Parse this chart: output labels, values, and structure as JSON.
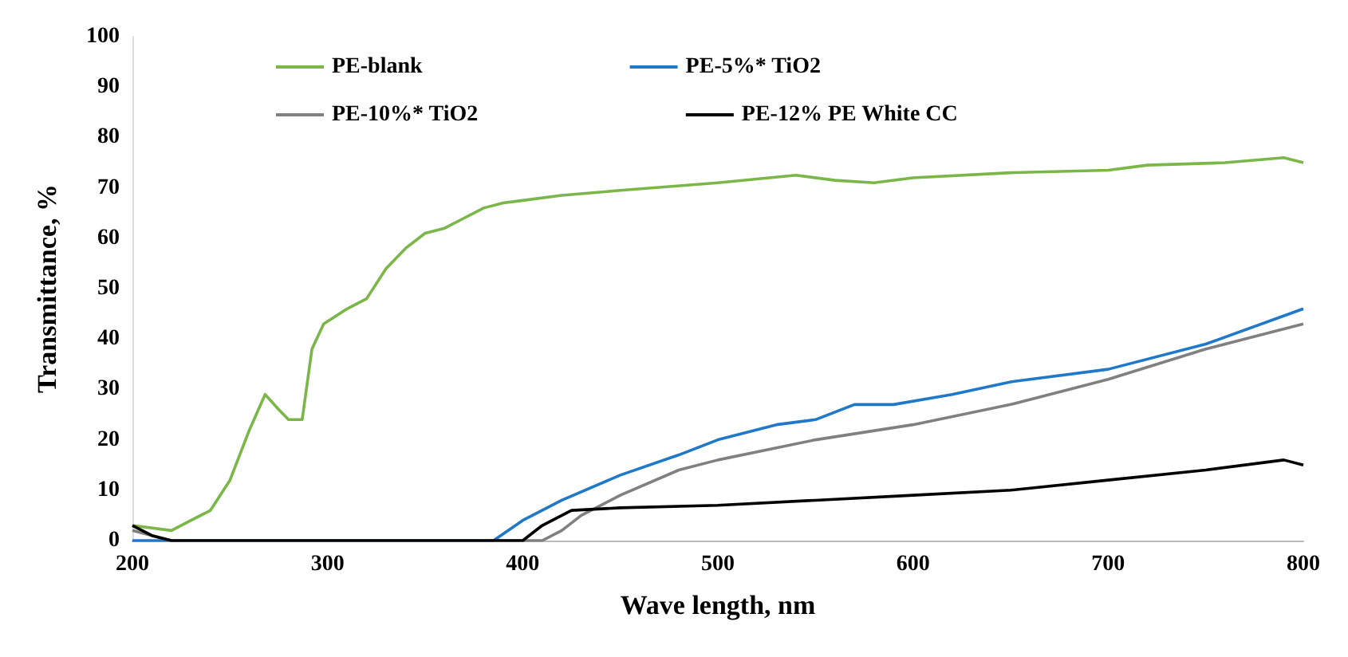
{
  "chart_data": {
    "type": "line",
    "xlabel": "Wave length, nm",
    "ylabel": "Transmittance, %",
    "xlim": [
      200,
      800
    ],
    "xticks": [
      200,
      300,
      400,
      500,
      600,
      700,
      800
    ],
    "ylim": [
      0,
      100
    ],
    "yticks": [
      0,
      10,
      20,
      30,
      40,
      50,
      60,
      70,
      80,
      90,
      100
    ],
    "grid": false,
    "legend": "top",
    "marker": "none",
    "line_style": "solid",
    "series": [
      {
        "name": "PE-blank",
        "color": "#7ab648",
        "x": [
          200,
          220,
          230,
          240,
          250,
          260,
          268,
          275,
          280,
          287,
          292,
          298,
          310,
          320,
          330,
          340,
          350,
          360,
          370,
          380,
          390,
          400,
          420,
          450,
          500,
          540,
          560,
          580,
          600,
          650,
          700,
          720,
          760,
          790,
          800
        ],
        "values": [
          3,
          2,
          4,
          6,
          12,
          22,
          29,
          26,
          24,
          24,
          38,
          43,
          46,
          48,
          54,
          58,
          61,
          62,
          64,
          66,
          67,
          67.5,
          68.5,
          69.5,
          71,
          72.5,
          71.5,
          71,
          72,
          73,
          73.5,
          74.5,
          75,
          76,
          75
        ]
      },
      {
        "name": "PE-5%* TiO2",
        "color": "#1f78c8",
        "x": [
          200,
          300,
          385,
          400,
          420,
          450,
          480,
          500,
          530,
          550,
          570,
          590,
          620,
          650,
          700,
          750,
          800
        ],
        "values": [
          0,
          0,
          0,
          4,
          8,
          13,
          17,
          20,
          23,
          24,
          27,
          27,
          29,
          31.5,
          34,
          39,
          46
        ]
      },
      {
        "name": "PE-10%* TiO2",
        "color": "#808080",
        "x": [
          200,
          210,
          220,
          300,
          410,
          420,
          430,
          450,
          480,
          500,
          550,
          600,
          650,
          700,
          750,
          800
        ],
        "values": [
          2,
          1,
          0,
          0,
          0,
          2,
          5,
          9,
          14,
          16,
          20,
          23,
          27,
          32,
          38,
          43
        ]
      },
      {
        "name": "PE-12% PE White CC",
        "color": "#000000",
        "x": [
          200,
          210,
          220,
          300,
          400,
          410,
          425,
          450,
          500,
          550,
          600,
          650,
          700,
          750,
          790,
          800
        ],
        "values": [
          3,
          1,
          0,
          0,
          0,
          3,
          6,
          6.5,
          7,
          8,
          9,
          10,
          12,
          14,
          16,
          15
        ]
      }
    ]
  }
}
